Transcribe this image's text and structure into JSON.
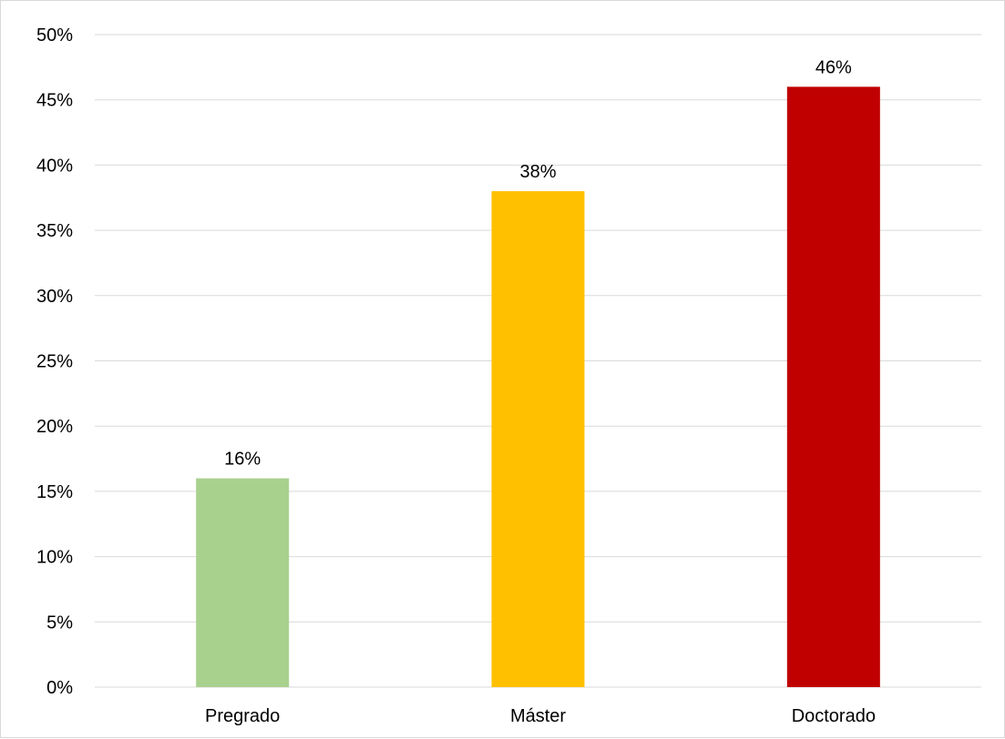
{
  "chart_data": {
    "type": "bar",
    "title": "",
    "xlabel": "",
    "ylabel": "",
    "categories": [
      "Pregrado",
      "Máster",
      "Doctorado"
    ],
    "values": [
      16,
      38,
      46
    ],
    "data_labels": [
      "16%",
      "38%",
      "46%"
    ],
    "colors": [
      "#a9d18e",
      "#ffc000",
      "#c00000"
    ],
    "ylim": [
      0,
      50
    ],
    "yticks": [
      0,
      5,
      10,
      15,
      20,
      25,
      30,
      35,
      40,
      45,
      50
    ],
    "ytick_labels": [
      "0%",
      "5%",
      "10%",
      "15%",
      "20%",
      "25%",
      "30%",
      "35%",
      "40%",
      "45%",
      "50%"
    ],
    "grid": true,
    "legend": "none"
  }
}
